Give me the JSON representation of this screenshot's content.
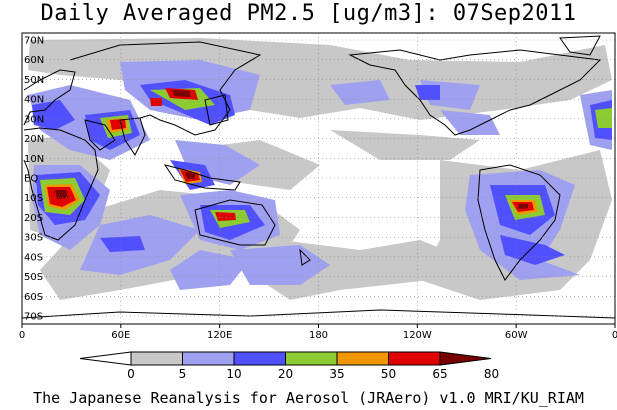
{
  "title": "Daily Averaged PM2.5 [ug/m3]: 07Sep2011",
  "footer": "The Japanese Reanalysis for Aerosol (JRAero) v1.0 MRI/KU_RIAM",
  "map": {
    "lat_labels": [
      "70N",
      "60N",
      "50N",
      "40N",
      "30N",
      "20N",
      "10N",
      "EQ",
      "10S",
      "20S",
      "30S",
      "40S",
      "50S",
      "60S",
      "70S"
    ],
    "lon_labels": [
      "0",
      "60E",
      "120E",
      "180",
      "120W",
      "60W",
      "0"
    ],
    "grid": "dotted"
  },
  "colorbar": {
    "labels": [
      "0",
      "5",
      "10",
      "20",
      "35",
      "50",
      "65",
      "80"
    ],
    "colors": [
      "#ffffff",
      "#c8c8c8",
      "#a0a0f0",
      "#5050ff",
      "#8ccc32",
      "#f09600",
      "#e00000",
      "#780000"
    ]
  },
  "regions": [
    {
      "color_index": 1
    },
    {
      "color_index": 2
    },
    {
      "color_index": 3
    },
    {
      "color_index": 4
    },
    {
      "color_index": 5
    },
    {
      "color_index": 6
    },
    {
      "color_index": 7
    }
  ]
}
